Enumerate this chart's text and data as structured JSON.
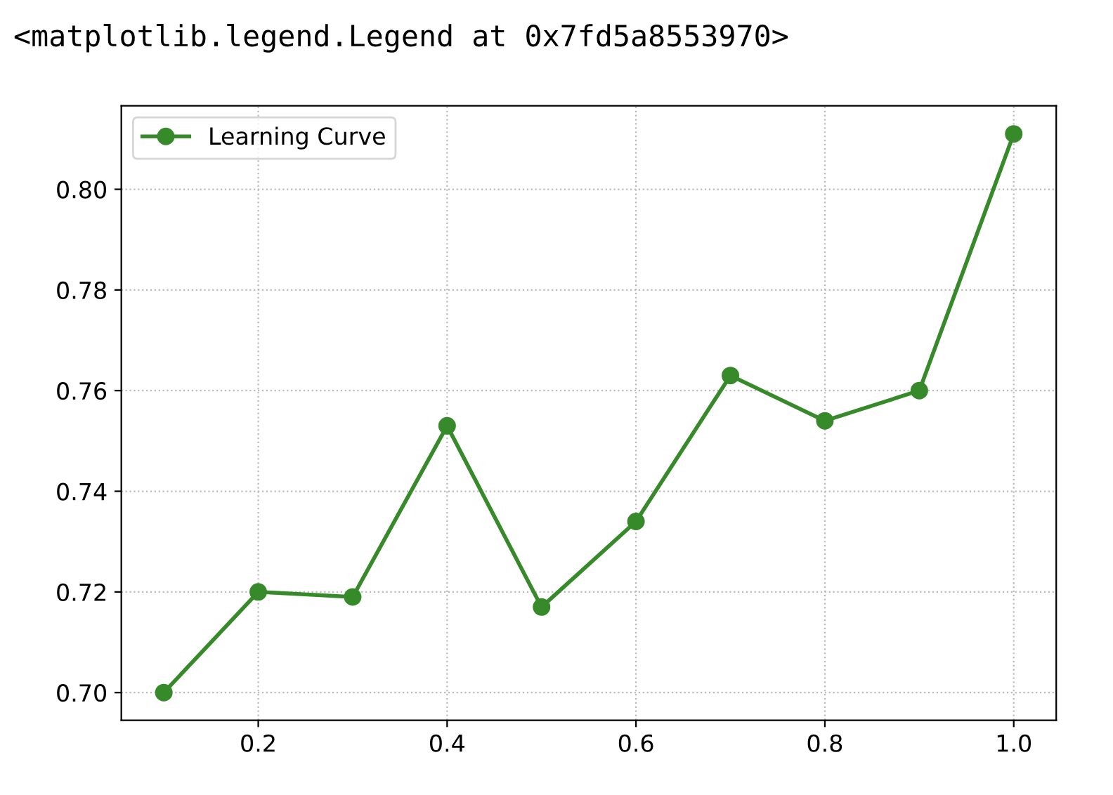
{
  "chart_data": {
    "type": "line",
    "annotations": [
      "<matplotlib.legend.Legend at 0x7fd5a8553970>"
    ],
    "x": [
      0.1,
      0.2,
      0.3,
      0.4,
      0.5,
      0.6,
      0.7,
      0.8,
      0.9,
      1.0
    ],
    "series": [
      {
        "name": "Learning Curve",
        "color": "#378a2a",
        "values": [
          0.7,
          0.72,
          0.719,
          0.753,
          0.717,
          0.734,
          0.763,
          0.754,
          0.76,
          0.811
        ]
      }
    ],
    "xlim": [
      0.055,
      1.045
    ],
    "xticks": [
      {
        "value": 0.2,
        "label": "0.2"
      },
      {
        "value": 0.4,
        "label": "0.4"
      },
      {
        "value": 0.6,
        "label": "0.6"
      },
      {
        "value": 0.8,
        "label": "0.8"
      },
      {
        "value": 1.0,
        "label": "1.0"
      }
    ],
    "ylim": [
      0.6945,
      0.8166
    ],
    "yticks": [
      {
        "value": 0.7,
        "label": "0.70"
      },
      {
        "value": 0.72,
        "label": "0.72"
      },
      {
        "value": 0.74,
        "label": "0.74"
      },
      {
        "value": 0.76,
        "label": "0.76"
      },
      {
        "value": 0.78,
        "label": "0.78"
      },
      {
        "value": 0.8,
        "label": "0.80"
      }
    ],
    "grid": true,
    "legend": "top left",
    "marker": "circle",
    "line_style": "solid"
  }
}
